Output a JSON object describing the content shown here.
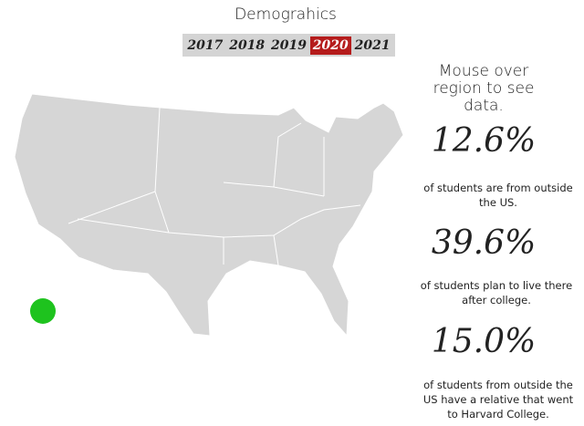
{
  "header": {
    "title": "Demograhics"
  },
  "years": [
    {
      "label": "2017",
      "selected": false
    },
    {
      "label": "2018",
      "selected": false
    },
    {
      "label": "2019",
      "selected": false
    },
    {
      "label": "2020",
      "selected": true
    },
    {
      "label": "2021",
      "selected": false
    }
  ],
  "prompt": "Mouse over region to see data.",
  "stats": [
    {
      "value": "12.6%",
      "caption": "of students are from outside the US."
    },
    {
      "value": "39.6%",
      "caption": "of students plan to live there after college."
    },
    {
      "value": "15.0%",
      "caption": "of students from outside the US have a relative that went to Harvard College."
    }
  ]
}
